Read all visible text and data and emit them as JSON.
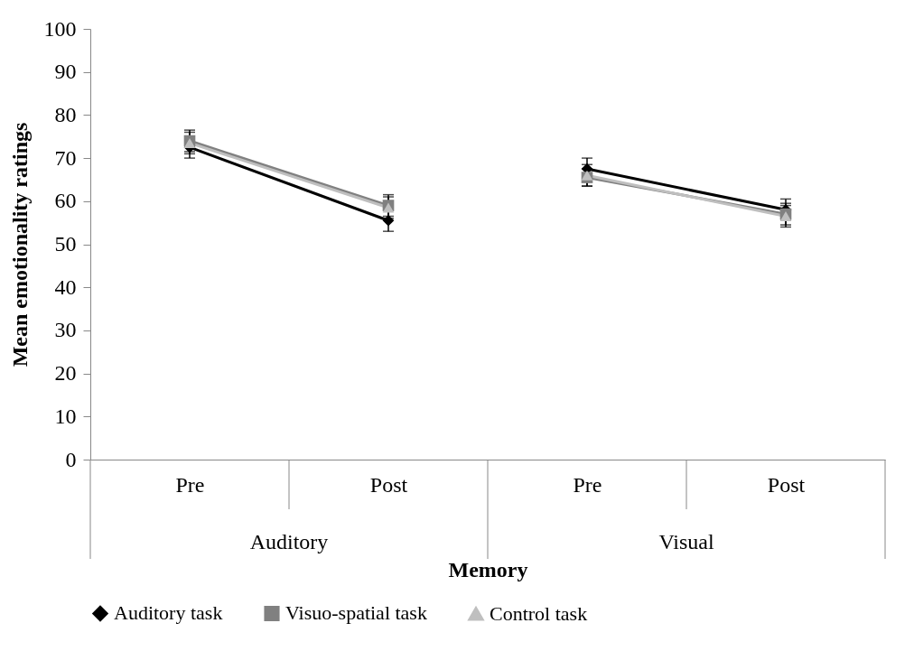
{
  "chart_data": {
    "type": "line",
    "xlabel": "Memory",
    "ylabel": "Mean emotionality ratings",
    "categories": [
      "Pre",
      "Post",
      "Pre",
      "Post"
    ],
    "annotations": [
      "Auditory",
      "Visual"
    ],
    "ylim": [
      0,
      100
    ],
    "yticks": [
      0,
      10,
      20,
      30,
      40,
      50,
      60,
      70,
      80,
      90,
      100
    ],
    "grid": false,
    "legend": "bottom",
    "line_style": "solid",
    "series": [
      {
        "name": "Auditory task",
        "color": "#000000",
        "marker": "diamond",
        "values": [
          72.5,
          55.5,
          67.5,
          58
        ],
        "errors": [
          2.5,
          2.5,
          2.5,
          2.5
        ]
      },
      {
        "name": "Visuo-spatial task",
        "color": "#808080",
        "marker": "square",
        "values": [
          74,
          59,
          65.5,
          57
        ],
        "errors": [
          2.5,
          2.5,
          2,
          2.5
        ]
      },
      {
        "name": "Control task",
        "color": "#bfbfbf",
        "marker": "triangle",
        "values": [
          73.5,
          58.5,
          66,
          56.5
        ],
        "errors": [
          2.5,
          2.5,
          2.5,
          2.5
        ]
      }
    ]
  }
}
